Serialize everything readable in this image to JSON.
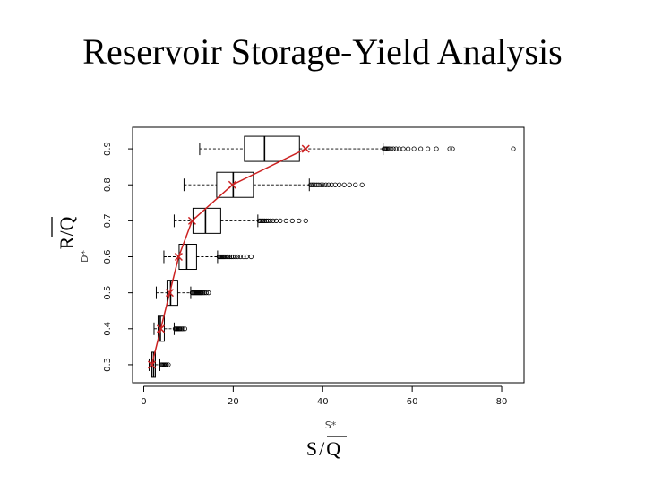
{
  "slide": {
    "title": "Reservoir Storage-Yield Analysis"
  },
  "chart_data": {
    "type": "boxplot",
    "title": "",
    "xlabel": "S/Q",
    "ylabel": "R/Q",
    "xlabel_faint": "S*",
    "ylabel_faint": "D*",
    "xlim": [
      -2.5,
      85
    ],
    "ylim": [
      0.25,
      0.96
    ],
    "xticks": [
      0,
      20,
      40,
      60,
      80
    ],
    "yticks": [
      0.3,
      0.4,
      0.5,
      0.6,
      0.7,
      0.8,
      0.9
    ],
    "colors": {
      "line": "#cc2222",
      "box": "#000000"
    },
    "boxes": [
      {
        "y": 0.3,
        "whisker_low": 1.2,
        "q1": 1.8,
        "median": 2.2,
        "q3": 2.6,
        "whisker_high": 3.6,
        "outliers": [
          3.9,
          4.1,
          4.3,
          4.5,
          4.7,
          4.9,
          5.1,
          5.5
        ]
      },
      {
        "y": 0.4,
        "whisker_low": 2.3,
        "q1": 3.2,
        "median": 3.7,
        "q3": 4.6,
        "whisker_high": 6.8,
        "outliers": [
          7.0,
          7.2,
          7.4,
          7.6,
          7.8,
          8.0,
          8.2,
          8.5,
          8.8,
          9.2
        ]
      },
      {
        "y": 0.5,
        "whisker_low": 2.8,
        "q1": 5.2,
        "median": 6.0,
        "q3": 7.6,
        "whisker_high": 10.5,
        "outliers": [
          10.8,
          11.0,
          11.2,
          11.4,
          11.6,
          11.8,
          12.0,
          12.2,
          12.4,
          12.6,
          12.8,
          13.0,
          13.3,
          13.6,
          14.0,
          14.5
        ]
      },
      {
        "y": 0.6,
        "whisker_low": 4.5,
        "q1": 7.9,
        "median": 9.6,
        "q3": 11.8,
        "whisker_high": 16.5,
        "outliers": [
          16.8,
          17.0,
          17.2,
          17.4,
          17.6,
          17.8,
          18.0,
          18.3,
          18.6,
          18.9,
          19.2,
          19.6,
          20.0,
          20.5,
          21.0,
          21.6,
          22.3,
          23.0,
          24.0
        ]
      },
      {
        "y": 0.7,
        "whisker_low": 6.8,
        "q1": 11.0,
        "median": 13.8,
        "q3": 17.2,
        "whisker_high": 25.5,
        "outliers": [
          25.8,
          26.1,
          26.4,
          26.7,
          27.0,
          27.4,
          27.8,
          28.3,
          28.9,
          29.6,
          30.5,
          31.8,
          33.2,
          34.7,
          36.2
        ]
      },
      {
        "y": 0.8,
        "whisker_low": 9.0,
        "q1": 16.3,
        "median": 20.0,
        "q3": 24.5,
        "whisker_high": 37.0,
        "outliers": [
          37.3,
          37.6,
          37.9,
          38.3,
          38.7,
          39.1,
          39.6,
          40.1,
          40.7,
          41.3,
          42.0,
          42.8,
          43.7,
          44.8,
          46.0,
          47.3,
          48.8
        ]
      },
      {
        "y": 0.9,
        "whisker_low": 12.5,
        "q1": 22.5,
        "median": 27.0,
        "q3": 34.8,
        "whisker_high": 53.5,
        "outliers": [
          53.7,
          53.9,
          54.1,
          54.3,
          54.6,
          54.9,
          55.3,
          55.8,
          56.4,
          57.1,
          58.0,
          59.1,
          60.4,
          61.9,
          63.5,
          65.4,
          68.4,
          69.0,
          82.6
        ]
      }
    ],
    "mean_line": {
      "x": [
        1.8,
        3.8,
        5.8,
        7.8,
        10.8,
        19.8,
        36.2
      ],
      "y": [
        0.3,
        0.4,
        0.5,
        0.6,
        0.7,
        0.8,
        0.9
      ]
    }
  }
}
